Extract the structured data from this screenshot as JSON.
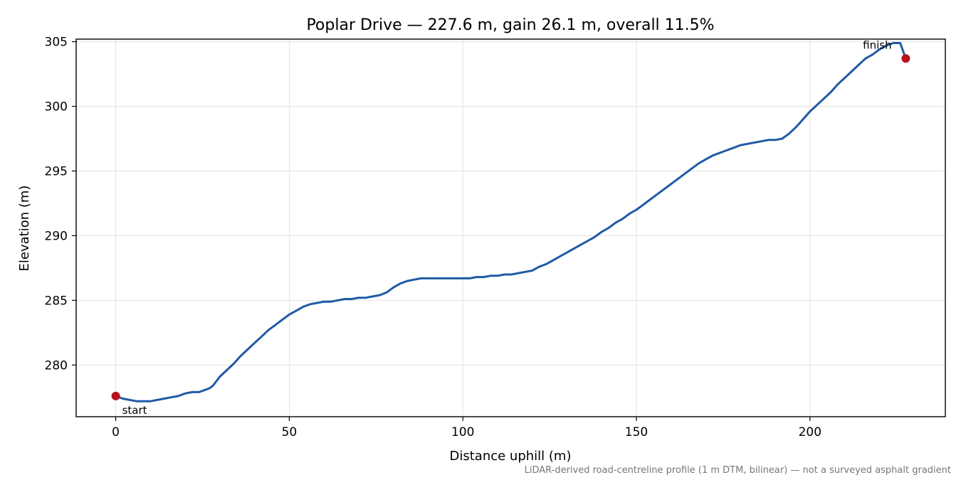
{
  "chart_data": {
    "type": "line",
    "title": "Poplar Drive — 227.6 m, gain 26.1 m, overall 11.5%",
    "xlabel": "Distance uphill (m)",
    "ylabel": "Elevation (m)",
    "footnote": "LiDAR-derived road-centreline profile (1 m DTM, bilinear) — not a surveyed asphalt gradient",
    "xlim": [
      -11.4,
      239
    ],
    "ylim": [
      276,
      305.2
    ],
    "xticks": [
      0,
      50,
      100,
      150,
      200
    ],
    "yticks": [
      280,
      285,
      290,
      295,
      300,
      305
    ],
    "grid": true,
    "series": [
      {
        "color": "#1f5aa6",
        "x": [
          0,
          2,
          4,
          6,
          8,
          10,
          12,
          14,
          16,
          18,
          20,
          22,
          24,
          26,
          27,
          28,
          30,
          32,
          34,
          36,
          38,
          40,
          42,
          44,
          46,
          48,
          50,
          52,
          54,
          56,
          58,
          60,
          62,
          64,
          66,
          68,
          70,
          72,
          74,
          76,
          78,
          80,
          82,
          84,
          86,
          88,
          90,
          92,
          94,
          96,
          98,
          100,
          102,
          104,
          106,
          108,
          110,
          112,
          114,
          116,
          118,
          120,
          122,
          124,
          126,
          128,
          130,
          132,
          134,
          136,
          138,
          140,
          142,
          144,
          146,
          148,
          150,
          152,
          154,
          156,
          158,
          160,
          162,
          164,
          166,
          168,
          170,
          172,
          174,
          176,
          178,
          180,
          182,
          184,
          186,
          188,
          190,
          192,
          194,
          196,
          198,
          200,
          202,
          204,
          206,
          208,
          210,
          212,
          214,
          216,
          218,
          220,
          222,
          224,
          226,
          227.6
        ],
        "y": [
          277.6,
          277.4,
          277.3,
          277.2,
          277.2,
          277.2,
          277.3,
          277.4,
          277.5,
          277.6,
          277.8,
          277.9,
          277.9,
          278.1,
          278.2,
          278.4,
          279.1,
          279.6,
          280.1,
          280.7,
          281.2,
          281.7,
          282.2,
          282.7,
          283.1,
          283.5,
          283.9,
          284.2,
          284.5,
          284.7,
          284.8,
          284.9,
          284.9,
          285.0,
          285.1,
          285.1,
          285.2,
          285.2,
          285.3,
          285.4,
          285.6,
          286.0,
          286.3,
          286.5,
          286.6,
          286.7,
          286.7,
          286.7,
          286.7,
          286.7,
          286.7,
          286.7,
          286.7,
          286.8,
          286.8,
          286.9,
          286.9,
          287.0,
          287.0,
          287.1,
          287.2,
          287.3,
          287.6,
          287.8,
          288.1,
          288.4,
          288.7,
          289.0,
          289.3,
          289.6,
          289.9,
          290.3,
          290.6,
          291.0,
          291.3,
          291.7,
          292.0,
          292.4,
          292.8,
          293.2,
          293.6,
          294.0,
          294.4,
          294.8,
          295.2,
          295.6,
          295.9,
          296.2,
          296.4,
          296.6,
          296.8,
          297.0,
          297.1,
          297.2,
          297.3,
          297.4,
          297.4,
          297.5,
          297.9,
          298.4,
          299.0,
          299.6,
          300.1,
          300.6,
          301.1,
          301.7,
          302.2,
          302.7,
          303.2,
          303.7,
          304.0,
          304.4,
          304.7,
          304.9,
          304.9,
          303.7
        ]
      }
    ],
    "annotations": [
      {
        "text": "start",
        "x": 0,
        "y": 277.6
      },
      {
        "text": "finish",
        "x": 227.6,
        "y": 303.7
      }
    ],
    "marker_color": "#b5121b"
  }
}
